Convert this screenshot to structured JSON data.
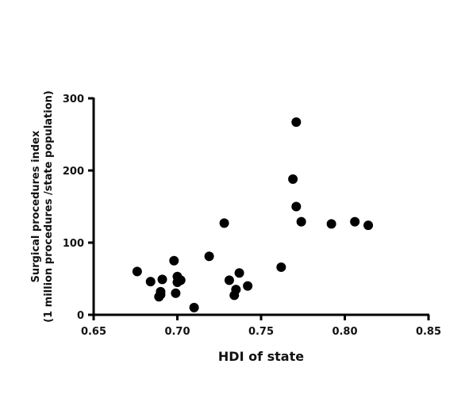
{
  "chart_data": {
    "type": "scatter",
    "title": "",
    "xlabel": "HDI of state",
    "ylabel_lines": [
      "Surgical procedures index",
      "(1 million procedures /state population)"
    ],
    "xlim": [
      0.65,
      0.85
    ],
    "ylim": [
      0,
      300
    ],
    "x_ticks": [
      0.65,
      0.7,
      0.75,
      0.8,
      0.85
    ],
    "x_tick_labels": [
      "0.65",
      "0.70",
      "0.75",
      "0.80",
      "0.85"
    ],
    "y_ticks": [
      0,
      100,
      200,
      300
    ],
    "y_tick_labels": [
      "0",
      "100",
      "200",
      "300"
    ],
    "grid": false,
    "legend": "none",
    "marker_color": "#000000",
    "axis_color": "#000000",
    "series": [
      {
        "points": [
          {
            "x": 0.676,
            "y": 60
          },
          {
            "x": 0.684,
            "y": 46
          },
          {
            "x": 0.689,
            "y": 25
          },
          {
            "x": 0.69,
            "y": 32
          },
          {
            "x": 0.691,
            "y": 49
          },
          {
            "x": 0.69,
            "y": 28
          },
          {
            "x": 0.698,
            "y": 75
          },
          {
            "x": 0.699,
            "y": 30
          },
          {
            "x": 0.7,
            "y": 53
          },
          {
            "x": 0.7,
            "y": 45
          },
          {
            "x": 0.702,
            "y": 48
          },
          {
            "x": 0.71,
            "y": 10
          },
          {
            "x": 0.719,
            "y": 81
          },
          {
            "x": 0.728,
            "y": 127
          },
          {
            "x": 0.731,
            "y": 48
          },
          {
            "x": 0.734,
            "y": 27
          },
          {
            "x": 0.735,
            "y": 35
          },
          {
            "x": 0.737,
            "y": 58
          },
          {
            "x": 0.742,
            "y": 40
          },
          {
            "x": 0.762,
            "y": 66
          },
          {
            "x": 0.769,
            "y": 188
          },
          {
            "x": 0.771,
            "y": 267
          },
          {
            "x": 0.771,
            "y": 150
          },
          {
            "x": 0.774,
            "y": 129
          },
          {
            "x": 0.792,
            "y": 126
          },
          {
            "x": 0.806,
            "y": 129
          },
          {
            "x": 0.814,
            "y": 124
          }
        ]
      }
    ]
  }
}
